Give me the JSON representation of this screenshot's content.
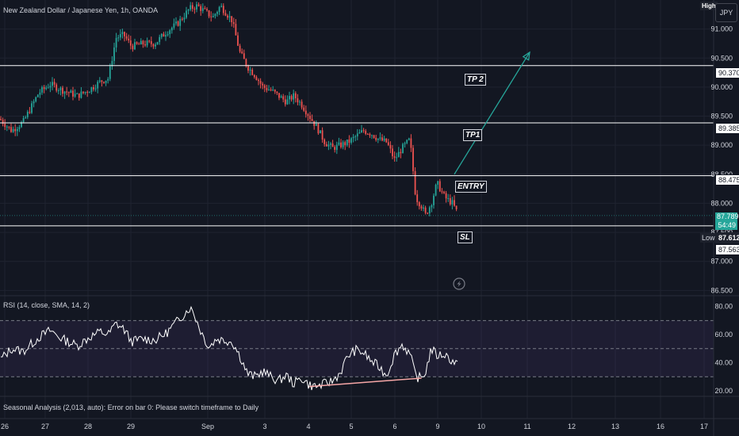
{
  "symbol_legend": "New Zealand Dollar / Japanese Yen, 1h, OANDA",
  "currency_button": "JPY",
  "high_label": "High",
  "low_label": "Low",
  "rsi_legend": "RSI (14, close, SMA, 14, 2)",
  "seasonal_legend": "Seasonal Analysis (2,013, auto): Error on bar 0: Please switch timeframe to Daily",
  "colors": {
    "background": "#131722",
    "up_candle": "#26a69a",
    "down_candle": "#ef5350",
    "level_line": "#ffffff",
    "arrow": "#26a69a",
    "rsi_line": "#ffffff",
    "rsi_band": "#7e57c2",
    "divergence_line": "#f7a7a7",
    "text": "#d1d4dc"
  },
  "live_price": {
    "price": "87.789",
    "countdown": "54:49"
  },
  "chart_data": [
    {
      "type": "candlestick",
      "title": "New Zealand Dollar / Japanese Yen, 1h, OANDA",
      "y_ticks": [
        "91.000",
        "90.500",
        "90.000",
        "89.500",
        "89.000",
        "88.500",
        "88.000",
        "87.500",
        "87.000",
        "86.500"
      ],
      "ylim": [
        86.45,
        91.5
      ],
      "x_ticks": [
        "26",
        "27",
        "28",
        "29",
        "Sep",
        "3",
        "4",
        "5",
        "6",
        "9",
        "10",
        "11",
        "12",
        "13",
        "16",
        "17"
      ],
      "price_path": [
        [
          26.0,
          89.45
        ],
        [
          26.3,
          89.25
        ],
        [
          26.6,
          89.4
        ],
        [
          27.0,
          89.9
        ],
        [
          27.3,
          90.05
        ],
        [
          27.6,
          89.95
        ],
        [
          28.0,
          89.85
        ],
        [
          28.3,
          89.95
        ],
        [
          28.6,
          90.1
        ],
        [
          28.8,
          90.15
        ],
        [
          29.0,
          90.85
        ],
        [
          29.2,
          90.9
        ],
        [
          29.4,
          90.7
        ],
        [
          29.7,
          90.75
        ],
        [
          30.0,
          90.75
        ],
        [
          30.3,
          90.95
        ],
        [
          30.6,
          91.1
        ],
        [
          30.9,
          91.35
        ],
        [
          31.1,
          91.4
        ],
        [
          31.3,
          91.3
        ],
        [
          31.5,
          91.2
        ],
        [
          31.7,
          91.4
        ],
        [
          32.0,
          91.15
        ],
        [
          32.2,
          90.6
        ],
        [
          32.4,
          90.35
        ],
        [
          32.6,
          90.2
        ],
        [
          32.8,
          90.0
        ],
        [
          33.0,
          89.95
        ],
        [
          33.2,
          89.85
        ],
        [
          33.4,
          89.75
        ],
        [
          33.6,
          89.85
        ],
        [
          33.8,
          89.7
        ],
        [
          34.0,
          89.5
        ],
        [
          34.2,
          89.3
        ],
        [
          34.4,
          89.05
        ],
        [
          34.6,
          88.95
        ],
        [
          34.8,
          89.0
        ],
        [
          35.0,
          89.05
        ],
        [
          35.2,
          89.15
        ],
        [
          35.4,
          89.25
        ],
        [
          35.6,
          89.2
        ],
        [
          35.8,
          89.1
        ],
        [
          36.0,
          89.05
        ],
        [
          36.2,
          88.75
        ],
        [
          36.4,
          88.95
        ],
        [
          36.6,
          89.1
        ],
        [
          36.75,
          88.1
        ],
        [
          36.9,
          87.95
        ],
        [
          37.0,
          87.8
        ],
        [
          37.15,
          88.0
        ],
        [
          37.3,
          88.35
        ],
        [
          37.5,
          88.1
        ],
        [
          37.7,
          88.0
        ],
        [
          37.85,
          87.8
        ]
      ],
      "levels": [
        {
          "label": "TP 2",
          "price": "90.370",
          "value": 90.37
        },
        {
          "label": "TP1",
          "price": "89.385",
          "value": 89.385
        },
        {
          "label": "ENTRY",
          "price": "88.475",
          "value": 88.475
        },
        {
          "label": "SL",
          "price": "87.612",
          "value": 87.612
        }
      ],
      "low_price": "87.563",
      "low_value": 87.563,
      "target_arrow": {
        "from": [
          37.9,
          88.5
        ],
        "to": [
          40.2,
          90.6
        ]
      }
    },
    {
      "type": "line",
      "title": "RSI (14, close, SMA, 14, 2)",
      "y_ticks": [
        "80.00",
        "60.00",
        "40.00",
        "20.00"
      ],
      "ylim": [
        16,
        86
      ],
      "band": [
        30,
        50,
        70
      ],
      "rsi_path": [
        [
          26.0,
          42
        ],
        [
          26.3,
          50
        ],
        [
          26.6,
          48
        ],
        [
          27.0,
          58
        ],
        [
          27.3,
          63
        ],
        [
          27.6,
          57
        ],
        [
          28.0,
          52
        ],
        [
          28.3,
          58
        ],
        [
          28.6,
          62
        ],
        [
          28.8,
          60
        ],
        [
          29.0,
          68
        ],
        [
          29.2,
          64
        ],
        [
          29.4,
          55
        ],
        [
          29.7,
          57
        ],
        [
          30.0,
          56
        ],
        [
          30.3,
          61
        ],
        [
          30.6,
          70
        ],
        [
          30.9,
          79
        ],
        [
          31.0,
          76
        ],
        [
          31.2,
          62
        ],
        [
          31.4,
          51
        ],
        [
          31.6,
          57
        ],
        [
          32.0,
          55
        ],
        [
          32.2,
          45
        ],
        [
          32.4,
          32
        ],
        [
          32.6,
          30
        ],
        [
          32.8,
          34
        ],
        [
          33.0,
          30
        ],
        [
          33.2,
          27
        ],
        [
          33.4,
          31
        ],
        [
          33.6,
          25
        ],
        [
          33.8,
          29
        ],
        [
          34.0,
          24
        ],
        [
          34.2,
          23
        ],
        [
          34.4,
          25
        ],
        [
          34.6,
          27
        ],
        [
          34.8,
          33
        ],
        [
          35.0,
          45
        ],
        [
          35.2,
          49
        ],
        [
          35.4,
          47
        ],
        [
          35.6,
          41
        ],
        [
          35.8,
          37
        ],
        [
          36.0,
          31
        ],
        [
          36.2,
          46
        ],
        [
          36.4,
          53
        ],
        [
          36.6,
          46
        ],
        [
          36.75,
          30
        ],
        [
          36.9,
          29
        ],
        [
          37.0,
          33
        ],
        [
          37.15,
          50
        ],
        [
          37.3,
          45
        ],
        [
          37.5,
          46
        ],
        [
          37.7,
          41
        ],
        [
          37.85,
          39
        ]
      ],
      "divergence": {
        "from": [
          34.0,
          23
        ],
        "to": [
          36.9,
          29
        ]
      }
    }
  ]
}
